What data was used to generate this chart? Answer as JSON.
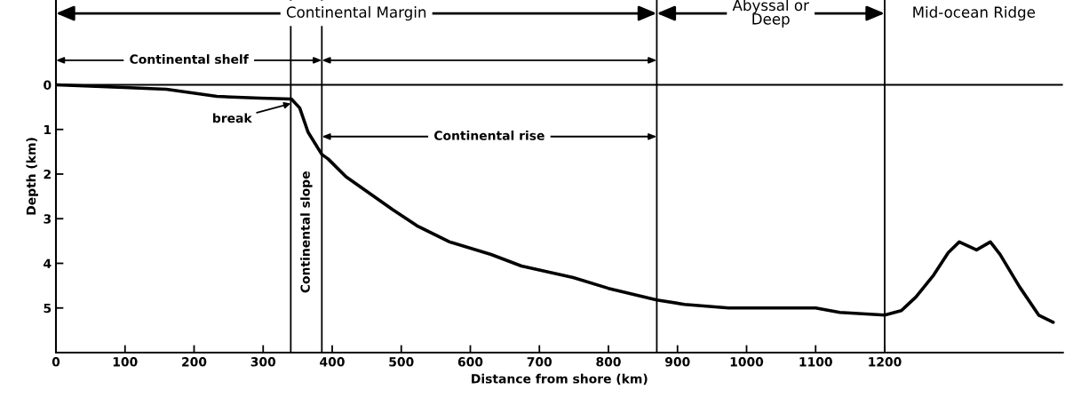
{
  "chart_data": {
    "type": "line",
    "xlabel": "Distance from shore (km)",
    "ylabel": "Depth (km)",
    "x": [
      0,
      99,
      160,
      233,
      296,
      341,
      353,
      365,
      385,
      394,
      420,
      488,
      523,
      570,
      630,
      674,
      749,
      800,
      870,
      910,
      974,
      1100,
      1135,
      1200,
      1224,
      1245,
      1271,
      1292,
      1308,
      1333,
      1353,
      1367,
      1395,
      1423,
      1444
    ],
    "series": [
      {
        "color": "#000000",
        "values": [
          0,
          0.06,
          0.1,
          0.26,
          0.3,
          0.32,
          0.52,
          1.06,
          1.56,
          1.66,
          2.06,
          2.8,
          3.16,
          3.52,
          3.8,
          4.06,
          4.32,
          4.56,
          4.82,
          4.92,
          5.0,
          5.0,
          5.1,
          5.16,
          5.06,
          4.76,
          4.26,
          3.76,
          3.52,
          3.7,
          3.52,
          3.8,
          4.52,
          5.16,
          5.32
        ]
      }
    ],
    "xlim": [
      0,
      1458
    ],
    "xticks": [
      0,
      100,
      200,
      300,
      400,
      500,
      600,
      700,
      800,
      900,
      1000,
      1100,
      1200
    ],
    "ylim": [
      6,
      -1.9
    ],
    "yticks": [
      0,
      1,
      2,
      3,
      4,
      5
    ],
    "ref_lines": [
      {
        "axis": "y",
        "value": 0
      },
      {
        "axis": "x",
        "value": 340
      },
      {
        "axis": "x",
        "value": 385
      },
      {
        "axis": "x",
        "value": 870
      },
      {
        "axis": "x",
        "value": 1200
      }
    ],
    "annotations": [
      "Continental Margin",
      "Abyssal or\nDeep",
      "Mid-ocean Ridge",
      "Continental shelf",
      "Continental rise",
      "Continental slope",
      {
        "text": "break",
        "x": 340,
        "y": 0.42
      }
    ],
    "grid": false,
    "marker": "none",
    "line_style": "solid"
  }
}
